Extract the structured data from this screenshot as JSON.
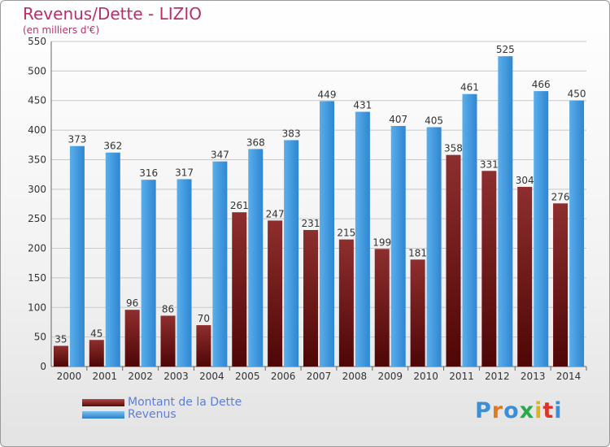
{
  "header": {
    "title": "Revenus/Dette - LIZIO",
    "subtitle": "(en milliers d'€)"
  },
  "legend": {
    "debt_label": "Montant de la Dette",
    "revenue_label": "Revenus"
  },
  "logo": {
    "text": "Proxiti"
  },
  "colors": {
    "debt": "#7a1f1f",
    "revenue": "#3a96e0",
    "title": "#b8306a"
  },
  "chart_data": {
    "type": "bar",
    "categories": [
      "2000",
      "2001",
      "2002",
      "2003",
      "2004",
      "2005",
      "2006",
      "2007",
      "2008",
      "2009",
      "2010",
      "2011",
      "2012",
      "2013",
      "2014"
    ],
    "series": [
      {
        "name": "Montant de la Dette",
        "values": [
          35,
          45,
          96,
          86,
          70,
          261,
          247,
          231,
          215,
          199,
          181,
          358,
          331,
          304,
          276
        ]
      },
      {
        "name": "Revenus",
        "values": [
          373,
          362,
          316,
          317,
          347,
          368,
          383,
          449,
          431,
          407,
          405,
          461,
          525,
          466,
          450
        ]
      }
    ],
    "ylim": [
      0,
      550
    ],
    "yticks": [
      0,
      50,
      100,
      150,
      200,
      250,
      300,
      350,
      400,
      450,
      500,
      550
    ],
    "grid": true
  }
}
